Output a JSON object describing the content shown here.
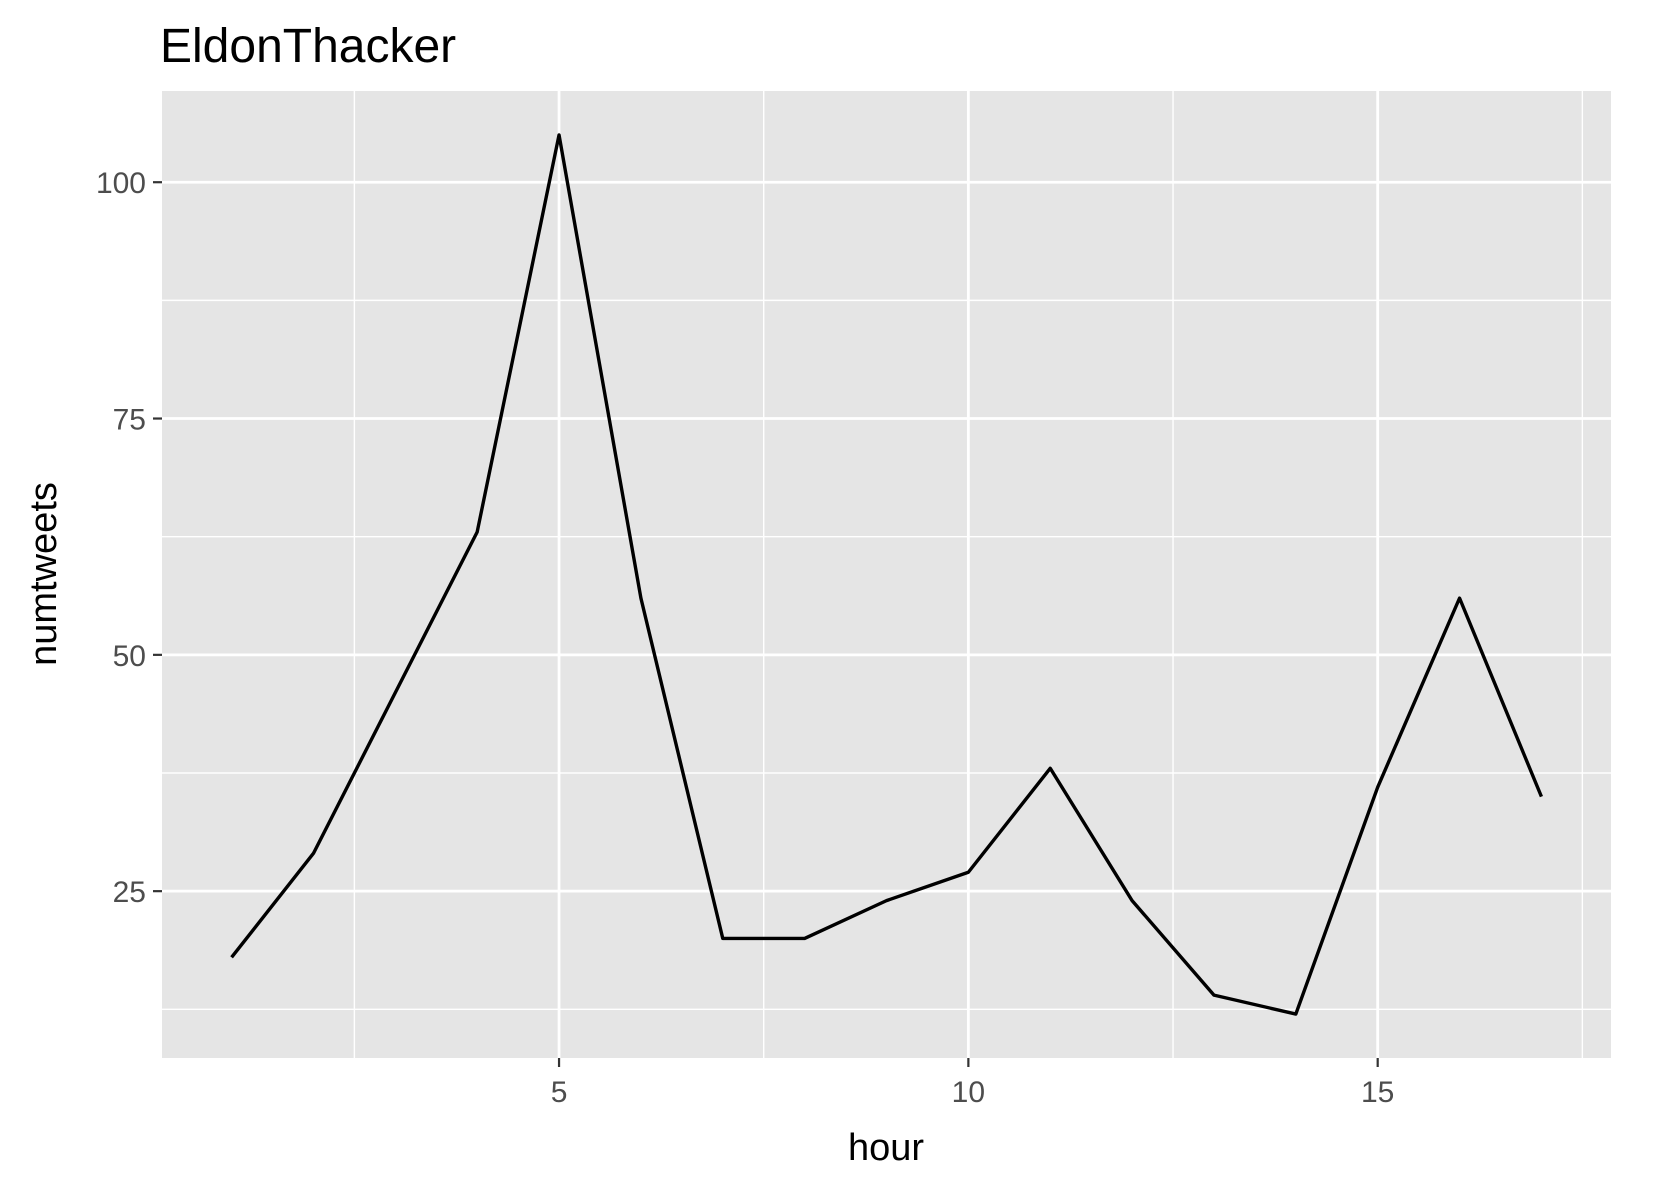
{
  "chart_data": {
    "type": "line",
    "title": "EldonThacker",
    "xlabel": "hour",
    "ylabel": "numtweets",
    "x": [
      1,
      2,
      3,
      4,
      5,
      6,
      7,
      8,
      9,
      10,
      11,
      12,
      13,
      14,
      15,
      16,
      17
    ],
    "series": [
      {
        "values": [
          18,
          29,
          46,
          63,
          105,
          56,
          20,
          20,
          24,
          27,
          38,
          24,
          14,
          12,
          36,
          56,
          35
        ]
      }
    ],
    "xlim": [
      0.15,
      17.85
    ],
    "ylim": [
      7.35,
      109.65
    ],
    "xticks": [
      5,
      10,
      15
    ],
    "xtick_labels": [
      "5",
      "10",
      "15"
    ],
    "yticks": [
      25,
      50,
      75,
      100
    ],
    "ytick_labels": [
      "25",
      "50",
      "75",
      "100"
    ],
    "grid": true,
    "legend": "none",
    "colors": {
      "panel_background": "#e5e5e5",
      "grid": "#ffffff",
      "line": "#000000",
      "tick_text": "#4d4d4d"
    }
  }
}
